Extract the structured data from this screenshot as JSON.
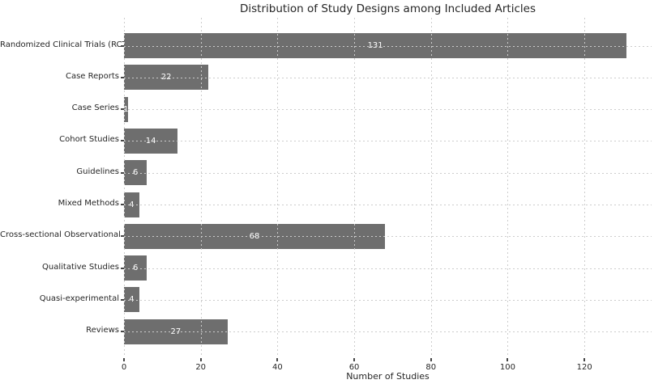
{
  "chart_data": {
    "type": "bar",
    "orientation": "horizontal",
    "title": "Distribution of Study Designs among Included Articles",
    "xlabel": "Number of Studies",
    "ylabel": "",
    "categories": [
      "Randomized Clinical Trials (RCT)",
      "Case Reports",
      "Case Series",
      "Cohort Studies",
      "Guidelines",
      "Mixed Methods",
      "Cross-sectional Observational",
      "Qualitative Studies",
      "Quasi-experimental",
      "Reviews"
    ],
    "values": [
      131,
      22,
      1,
      14,
      6,
      4,
      68,
      6,
      4,
      27
    ],
    "xticks": [
      0,
      20,
      40,
      60,
      80,
      100,
      120
    ],
    "xlim": [
      0,
      137.5
    ],
    "grid": true,
    "legend": false,
    "bar_color": "#6e6e6e",
    "value_label_color": "#ffffff",
    "grid_color": "#cccccc",
    "background_color": "#ffffff"
  }
}
